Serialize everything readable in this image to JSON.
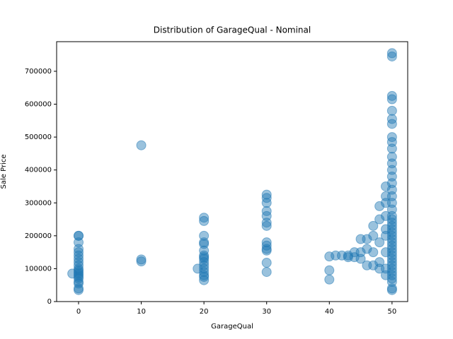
{
  "chart_data": {
    "type": "scatter",
    "title": "Distribution of GarageQual - Nominal",
    "x_label": "GarageQual",
    "y_label": "Sale Price",
    "color": "#1f77b4",
    "xlim": [
      -3.5,
      52.5
    ],
    "ylim": [
      0,
      790000
    ],
    "xticks": [
      0,
      10,
      20,
      30,
      40,
      50
    ],
    "yticks": [
      0,
      100000,
      200000,
      300000,
      400000,
      500000,
      600000,
      700000
    ],
    "x": [
      0,
      0,
      0,
      0,
      0,
      0,
      0,
      0,
      0,
      0,
      0,
      0,
      0,
      0,
      0,
      0,
      0,
      0,
      0,
      0,
      -1,
      10,
      10,
      10,
      20,
      20,
      20,
      20,
      20,
      20,
      20,
      20,
      20,
      20,
      20,
      20,
      20,
      20,
      20,
      20,
      19,
      30,
      30,
      30,
      30,
      30,
      30,
      30,
      30,
      30,
      30,
      30,
      30,
      30,
      40,
      40,
      40,
      41,
      42,
      43,
      43,
      44,
      44,
      45,
      45,
      45,
      46,
      46,
      46,
      47,
      47,
      47,
      47,
      48,
      48,
      48,
      48,
      48,
      49,
      49,
      49,
      49,
      49,
      49,
      49,
      49,
      49,
      50,
      50,
      50,
      50,
      50,
      50,
      50,
      50,
      50,
      50,
      50,
      50,
      50,
      50,
      50,
      50,
      50,
      50,
      50,
      50,
      50,
      50,
      50,
      50,
      50,
      50,
      50,
      50,
      50,
      50,
      50,
      50,
      50,
      50,
      50,
      50,
      50,
      50,
      50,
      50,
      50,
      50
    ],
    "values": [
      200000,
      200000,
      150000,
      140000,
      130000,
      120000,
      110000,
      100000,
      95000,
      90000,
      85000,
      80000,
      75000,
      70000,
      60000,
      55000,
      40000,
      35000,
      180000,
      160000,
      85000,
      475000,
      128000,
      122000,
      255000,
      245000,
      200000,
      180000,
      175000,
      155000,
      140000,
      130000,
      120000,
      110000,
      100000,
      90000,
      80000,
      75000,
      65000,
      135000,
      100000,
      325000,
      315000,
      300000,
      275000,
      260000,
      240000,
      230000,
      180000,
      170000,
      160000,
      155000,
      118000,
      90000,
      137000,
      95000,
      67000,
      140000,
      140000,
      140000,
      135000,
      135000,
      150000,
      190000,
      150000,
      130000,
      190000,
      110000,
      160000,
      200000,
      110000,
      230000,
      150000,
      250000,
      290000,
      120000,
      180000,
      100000,
      300000,
      320000,
      260000,
      200000,
      150000,
      100000,
      80000,
      350000,
      220000,
      755000,
      745000,
      625000,
      615000,
      580000,
      555000,
      540000,
      500000,
      485000,
      465000,
      440000,
      420000,
      400000,
      380000,
      360000,
      340000,
      320000,
      300000,
      280000,
      260000,
      240000,
      220000,
      200000,
      180000,
      160000,
      140000,
      120000,
      100000,
      80000,
      60000,
      40000,
      35000,
      130000,
      150000,
      170000,
      190000,
      210000,
      230000,
      250000,
      110000,
      90000,
      70000
    ]
  }
}
